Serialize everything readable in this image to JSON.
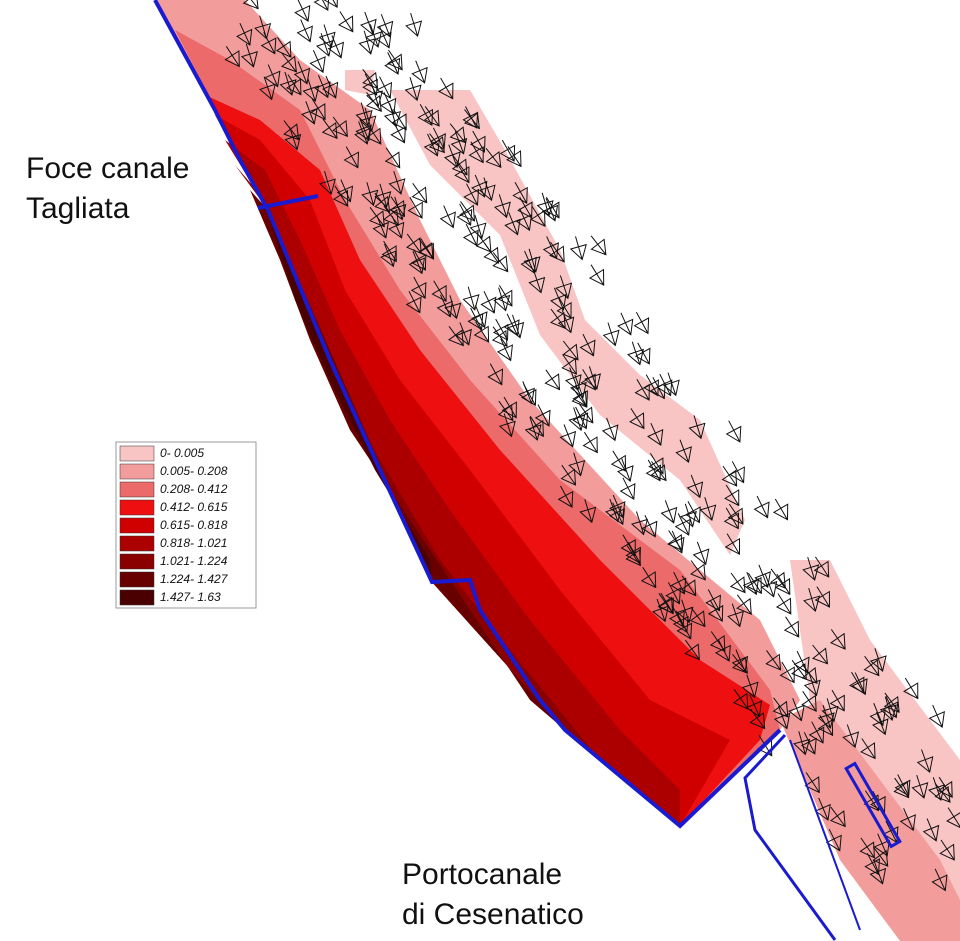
{
  "place_labels": [
    {
      "lines": [
        "Foce canale",
        "Tagliata"
      ]
    },
    {
      "lines": [
        "Portocanale",
        "di Cesenatico"
      ]
    }
  ],
  "legend": {
    "entries": [
      {
        "label": "0- 0.005",
        "color": "#f8c4c4"
      },
      {
        "label": "0.005- 0.208",
        "color": "#f29c9c"
      },
      {
        "label": "0.208- 0.412",
        "color": "#ec6a6a"
      },
      {
        "label": "0.412- 0.615",
        "color": "#ee1010"
      },
      {
        "label": "0.615- 0.818",
        "color": "#d00000"
      },
      {
        "label": "0.818- 1.021",
        "color": "#ac0000"
      },
      {
        "label": "1.021- 1.224",
        "color": "#8a0000"
      },
      {
        "label": "1.224- 1.427",
        "color": "#680000"
      },
      {
        "label": "1.427- 1.63",
        "color": "#4a0000"
      }
    ]
  }
}
